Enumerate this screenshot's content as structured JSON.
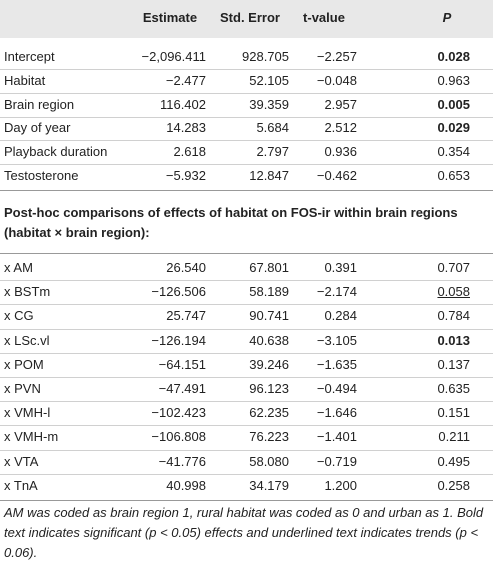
{
  "header": [
    "Estimate",
    "Std. Error",
    "t-value",
    "P"
  ],
  "rows": [
    {
      "cells": [
        "Intercept",
        "−2,096.411",
        "928.705",
        "−2.257",
        "0.028"
      ],
      "p_bold": true
    },
    {
      "cells": [
        "Habitat",
        "−2.477",
        "52.105",
        "−0.048",
        "0.963"
      ]
    },
    {
      "cells": [
        "Brain region",
        "116.402",
        "39.359",
        "2.957",
        "0.005"
      ],
      "p_bold": true
    },
    {
      "cells": [
        "Day of year",
        "14.283",
        "5.684",
        "2.512",
        "0.029"
      ],
      "p_bold": true
    },
    {
      "cells": [
        "Playback duration",
        "2.618",
        "2.797",
        "0.936",
        "0.354"
      ]
    },
    {
      "cells": [
        "Testosterone",
        "−5.932",
        "12.847",
        "−0.462",
        "0.653"
      ]
    }
  ],
  "section": "Post-hoc comparisons of effects of habitat on FOS-ir within brain regions (habitat × brain region):",
  "posthoc_rows": [
    {
      "cells": [
        "x AM",
        "26.540",
        "67.801",
        "0.391",
        "0.707"
      ]
    },
    {
      "cells": [
        "x BSTm",
        "−126.506",
        "58.189",
        "−2.174",
        "0.058"
      ],
      "p_underline": true
    },
    {
      "cells": [
        "x CG",
        "25.747",
        "90.741",
        "0.284",
        "0.784"
      ]
    },
    {
      "cells": [
        "x LSc.vl",
        "−126.194",
        "40.638",
        "−3.105",
        "0.013"
      ],
      "p_bold": true
    },
    {
      "cells": [
        "x POM",
        "−64.151",
        "39.246",
        "−1.635",
        "0.137"
      ]
    },
    {
      "cells": [
        "x PVN",
        "−47.491",
        "96.123",
        "−0.494",
        "0.635"
      ]
    },
    {
      "cells": [
        "x VMH-l",
        "−102.423",
        "62.235",
        "−1.646",
        "0.151"
      ]
    },
    {
      "cells": [
        "x VMH-m",
        "−106.808",
        "76.223",
        "−1.401",
        "0.211"
      ]
    },
    {
      "cells": [
        "x VTA",
        "−41.776",
        "58.080",
        "−0.719",
        "0.495"
      ]
    },
    {
      "cells": [
        "x TnA",
        "40.998",
        "34.179",
        "1.200",
        "0.258"
      ]
    }
  ],
  "footnote": "AM was coded as brain region 1, rural habitat was coded as 0 and urban as 1. Bold text indicates significant (p < 0.05) effects and underlined text indicates trends (p < 0.06)."
}
